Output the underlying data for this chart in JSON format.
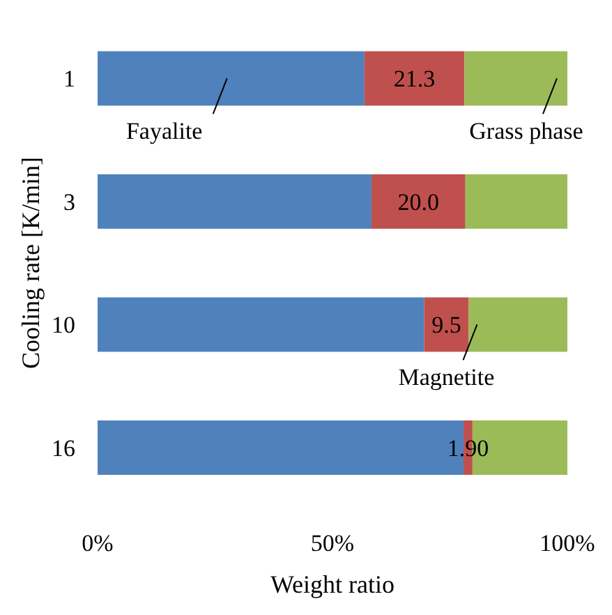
{
  "chart_data": {
    "type": "bar",
    "orientation": "horizontal",
    "stacked": true,
    "ylabel": "Cooling rate [K/min]",
    "xlabel": "Weight ratio",
    "categories": [
      "1",
      "3",
      "10",
      "16"
    ],
    "series": [
      {
        "name": "Fayalite",
        "color": "#4f81bd",
        "values": [
          56.8,
          58.3,
          69.5,
          77.9
        ]
      },
      {
        "name": "Magnetite",
        "color": "#c0504d",
        "values": [
          21.3,
          20.0,
          9.5,
          1.9
        ],
        "value_labels": [
          "21.3",
          "20.0",
          "9.5",
          "1.90"
        ]
      },
      {
        "name": "Grass phase",
        "color": "#9bbb59",
        "values": [
          21.9,
          21.7,
          21.0,
          20.2
        ]
      }
    ],
    "xlim": [
      0,
      100
    ],
    "xticks": [
      {
        "value": 0,
        "label": "0%"
      },
      {
        "value": 50,
        "label": "50%"
      },
      {
        "value": 100,
        "label": "100%"
      }
    ]
  }
}
